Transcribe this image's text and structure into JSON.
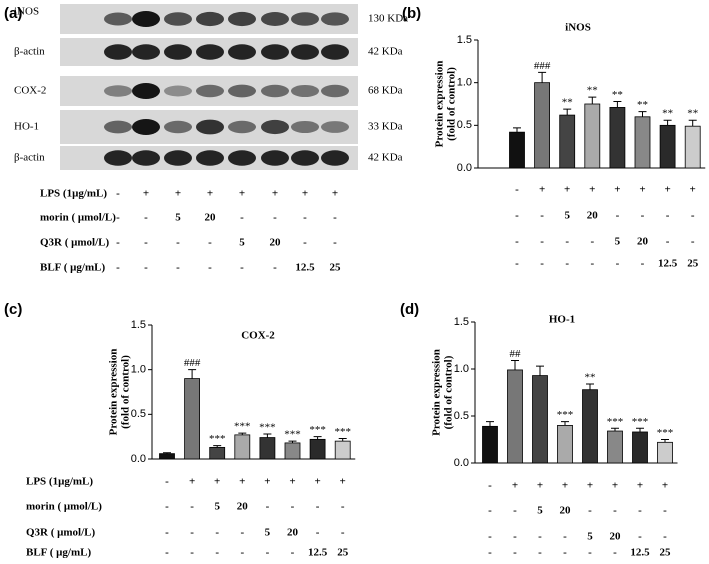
{
  "blot": {
    "panel_label": "(a)",
    "bands": [
      {
        "name": "iNOS",
        "size": "130 KDa"
      },
      {
        "name": "β-actin",
        "size": "42 KDa"
      },
      {
        "name": "COX-2",
        "size": "68 KDa"
      },
      {
        "name": "HO-1",
        "size": "33 KDa"
      },
      {
        "name": "β-actin",
        "size": "42 KDa"
      }
    ],
    "conditions": [
      {
        "label": "LPS (1μg/mL)",
        "values": [
          "-",
          "+",
          "+",
          "+",
          "+",
          "+",
          "+",
          "+"
        ]
      },
      {
        "label": "morin ( μmol/L)",
        "values": [
          "-",
          "-",
          "5",
          "20",
          "-",
          "-",
          "-",
          "-"
        ]
      },
      {
        "label": "Q3R  ( μmol/L)",
        "values": [
          "-",
          "-",
          "-",
          "-",
          "5",
          "20",
          "-",
          "-"
        ]
      },
      {
        "label": "BLF ( μg/mL)",
        "values": [
          "-",
          "-",
          "-",
          "-",
          "-",
          "-",
          "12.5",
          "25"
        ]
      }
    ]
  },
  "chart_data": [
    {
      "type": "bar",
      "panel_label": "(b)",
      "title": "iNOS",
      "ylabel": [
        "Protein expression",
        "(fold of control)"
      ],
      "values": [
        0.42,
        1.0,
        0.62,
        0.75,
        0.71,
        0.6,
        0.5,
        0.49
      ],
      "errors": [
        0.05,
        0.12,
        0.07,
        0.08,
        0.07,
        0.06,
        0.06,
        0.07
      ],
      "annotations": [
        null,
        "###",
        "**",
        "**",
        "**",
        "**",
        "**",
        "**"
      ],
      "colors": [
        "#111111",
        "#777777",
        "#444444",
        "#aaaaaa",
        "#333333",
        "#888888",
        "#2a2a2a",
        "#cccccc"
      ],
      "ylim": [
        0,
        1.5
      ],
      "yticks": [
        {
          "value": 0,
          "label": "0.0"
        },
        0.5,
        {
          "value": 1,
          "label": "1.0"
        },
        1.5
      ],
      "conditions": [
        {
          "values": [
            "-",
            "+",
            "+",
            "+",
            "+",
            "+",
            "+",
            "+"
          ]
        },
        {
          "values": [
            "-",
            "-",
            "5",
            "20",
            "-",
            "-",
            "-",
            "-"
          ]
        },
        {
          "values": [
            "-",
            "-",
            "-",
            "-",
            "5",
            "20",
            "-",
            "-"
          ]
        },
        {
          "values": [
            "-",
            "-",
            "-",
            "-",
            "-",
            "-",
            "12.5",
            "25"
          ]
        }
      ]
    },
    {
      "type": "bar",
      "panel_label": "(c)",
      "title": "COX-2",
      "ylabel": [
        "Protein expression",
        "(fold of control)"
      ],
      "values": [
        0.06,
        0.9,
        0.13,
        0.27,
        0.24,
        0.18,
        0.22,
        0.2
      ],
      "errors": [
        0.01,
        0.1,
        0.02,
        0.02,
        0.04,
        0.02,
        0.03,
        0.03
      ],
      "annotations": [
        null,
        "###",
        "***",
        "***",
        "***",
        "***",
        "***",
        "***"
      ],
      "colors": [
        "#111111",
        "#777777",
        "#444444",
        "#aaaaaa",
        "#333333",
        "#888888",
        "#2a2a2a",
        "#cccccc"
      ],
      "ylim": [
        0,
        1.5
      ],
      "yticks": [
        {
          "value": 0,
          "label": "0.0"
        },
        0.5,
        {
          "value": 1,
          "label": "1.0"
        },
        1.5
      ],
      "conditions": [
        {
          "label": "LPS (1μg/mL)",
          "values": [
            "-",
            "+",
            "+",
            "+",
            "+",
            "+",
            "+",
            "+"
          ]
        },
        {
          "label": "morin ( μmol/L)",
          "values": [
            "-",
            "-",
            "5",
            "20",
            "-",
            "-",
            "-",
            "-"
          ]
        },
        {
          "label": "Q3R  ( μmol/L)",
          "values": [
            "-",
            "-",
            "-",
            "-",
            "5",
            "20",
            "-",
            "-"
          ]
        },
        {
          "label": "BLF ( μg/mL)",
          "values": [
            "-",
            "-",
            "-",
            "-",
            "-",
            "-",
            "12.5",
            "25"
          ]
        }
      ]
    },
    {
      "type": "bar",
      "panel_label": "(d)",
      "title": "HO-1",
      "ylabel": [
        "Protein expression",
        "(fold of control)"
      ],
      "values": [
        0.39,
        0.99,
        0.93,
        0.4,
        0.78,
        0.34,
        0.33,
        0.22
      ],
      "errors": [
        0.05,
        0.1,
        0.1,
        0.04,
        0.06,
        0.03,
        0.04,
        0.03
      ],
      "annotations": [
        null,
        "##",
        null,
        "***",
        "**",
        "***",
        "***",
        "***"
      ],
      "colors": [
        "#111111",
        "#777777",
        "#444444",
        "#aaaaaa",
        "#333333",
        "#888888",
        "#2a2a2a",
        "#cccccc"
      ],
      "ylim": [
        0,
        1.5
      ],
      "yticks": [
        {
          "value": 0,
          "label": "0.0"
        },
        0.5,
        {
          "value": 1,
          "label": "1.0"
        },
        1.5
      ],
      "conditions": [
        {
          "values": [
            "-",
            "+",
            "+",
            "+",
            "+",
            "+",
            "+",
            "+"
          ]
        },
        {
          "values": [
            "-",
            "-",
            "5",
            "20",
            "-",
            "-",
            "-",
            "-"
          ]
        },
        {
          "values": [
            "-",
            "-",
            "-",
            "-",
            "5",
            "20",
            "-",
            "-"
          ]
        },
        {
          "values": [
            "-",
            "-",
            "-",
            "-",
            "-",
            "-",
            "12.5",
            "25"
          ]
        }
      ]
    }
  ]
}
